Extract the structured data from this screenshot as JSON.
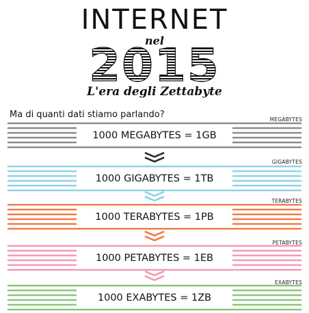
{
  "header": {
    "title": "INTERNET",
    "subtitle_nel": "nel",
    "year": "2015",
    "tagline": "L'era degli Zettabyte"
  },
  "question": "Ma di quanti dati stiamo parlando?",
  "rows": [
    {
      "unit_label": "MEGABYTES",
      "equation": "1000 MEGABYTES = 1GB",
      "color": "#8c8c8c"
    },
    {
      "unit_label": "GIGABYTES",
      "equation": "1000 GIGABYTES = 1TB",
      "color": "#8fd2e4"
    },
    {
      "unit_label": "TERABYTES",
      "equation": "1000 TERABYTES = 1PB",
      "color": "#f07c47"
    },
    {
      "unit_label": "PETABYTES",
      "equation": "1000 PETABYTES = 1EB",
      "color": "#f29bb5"
    },
    {
      "unit_label": "EXABYTES",
      "equation": "1000 EXABYTES = 1ZB",
      "color": "#8cc67b"
    }
  ],
  "arrows": [
    {
      "icon": "double-chevron-down-icon",
      "color": "#2b2b2b"
    },
    {
      "icon": "double-chevron-down-icon",
      "color": "#8fd2e4"
    },
    {
      "icon": "double-chevron-down-icon",
      "color": "#f07c47"
    },
    {
      "icon": "double-chevron-down-icon",
      "color": "#f29bb5"
    }
  ]
}
